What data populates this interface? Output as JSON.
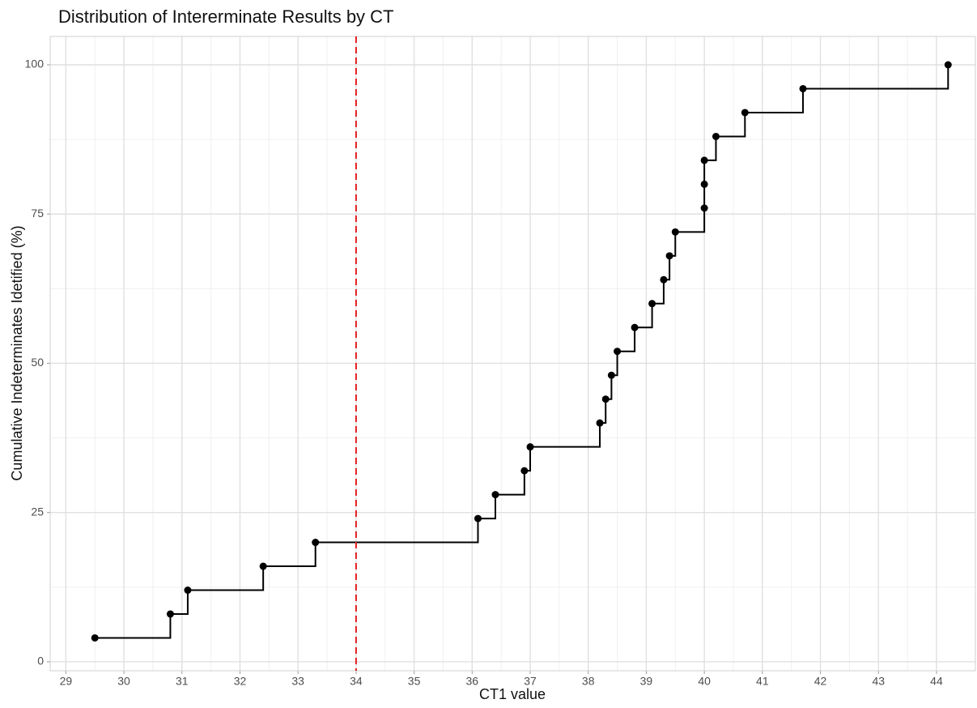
{
  "chart_data": {
    "type": "step",
    "title": "Distribution of Intererminate Results by CT",
    "x_label": "CT1 value",
    "y_label": "Cumulative Indeterminates Idetified (%)",
    "x": [
      29.5,
      30.8,
      31.1,
      32.4,
      33.3,
      36.1,
      36.4,
      36.9,
      37.0,
      38.2,
      38.3,
      38.4,
      38.5,
      38.8,
      39.1,
      39.3,
      39.4,
      39.5,
      40.0,
      40.0,
      40.0,
      40.2,
      40.7,
      41.7,
      44.2
    ],
    "values": [
      4,
      8,
      12,
      16,
      20,
      24,
      28,
      32,
      36,
      40,
      44,
      48,
      52,
      56,
      60,
      64,
      68,
      72,
      76,
      80,
      84,
      88,
      92,
      96,
      100
    ],
    "color": "#000000",
    "vline": 34,
    "vline_color": "#e31a1c",
    "xlim": [
      28.73,
      44.67
    ],
    "ylim": [
      -1.5,
      104.75
    ],
    "xticks": [
      29,
      30,
      31,
      32,
      33,
      34,
      35,
      36,
      37,
      38,
      39,
      40,
      41,
      42,
      43,
      44
    ],
    "yticks": [
      0,
      25,
      50,
      75,
      100
    ],
    "grid": true
  }
}
